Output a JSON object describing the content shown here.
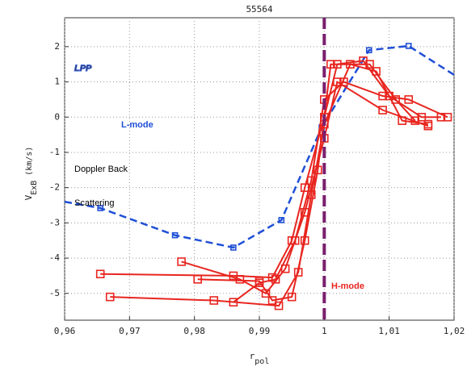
{
  "chart_data": {
    "type": "line",
    "title": "55564",
    "xlabel": "r",
    "xlabel_sub": "pol",
    "ylabel": "V",
    "ylabel_sub": "ExB",
    "ylabel_unit": "(km/s)",
    "annotations": [
      "LPP",
      "L-mode",
      "Doppler Back",
      "Scattering",
      "H-mode"
    ],
    "xlim": [
      0.96,
      1.02
    ],
    "xticks": [
      {
        "value": 0.96,
        "label": "0,96"
      },
      {
        "value": 0.97,
        "label": "0,97"
      },
      {
        "value": 0.98,
        "label": "0,98"
      },
      {
        "value": 0.99,
        "label": "0,99"
      },
      1,
      {
        "value": 1.01,
        "label": "1,01"
      },
      {
        "value": 1.02,
        "label": "1,02"
      }
    ],
    "ylim": [
      -5.76,
      2.82
    ],
    "yticks": [
      -5,
      -4,
      -3,
      -2,
      -1,
      0,
      1,
      2
    ],
    "grid": true,
    "vline": 1,
    "vline_color": "#7a1f6e",
    "series": [
      {
        "color": "#1f4fd6",
        "linestyle": "dashed",
        "x": [
          0.96,
          0.9655,
          0.977,
          0.986,
          0.9934,
          0.9996,
          1.0069,
          1.013,
          1.02
        ],
        "values": [
          -2.4,
          -2.58,
          -3.35,
          -3.7,
          -2.92,
          -0.29,
          1.9,
          2.02,
          1.2
        ],
        "markers": [
          false,
          true,
          true,
          true,
          true,
          true,
          true,
          true,
          false
        ]
      },
      {
        "color": "#e8251f",
        "linestyle": "solid",
        "x": [
          0.9655,
          0.986,
          0.992,
          0.995,
          0.997,
          1.0,
          1.002,
          1.006,
          1.01,
          1.015,
          1.018
        ],
        "values": [
          -4.45,
          -4.5,
          -4.55,
          -3.5,
          -2.0,
          0,
          1.5,
          1.6,
          0.6,
          0,
          0
        ]
      },
      {
        "color": "#e8251f",
        "linestyle": "solid",
        "x": [
          0.967,
          0.983,
          0.993,
          0.996,
          0.998,
          1.0,
          1.004,
          1.008,
          1.012,
          1.016
        ],
        "values": [
          -5.1,
          -5.2,
          -5.35,
          -4.4,
          -2.2,
          -0.2,
          1.5,
          1.3,
          -0.1,
          -0.2
        ]
      },
      {
        "color": "#e8251f",
        "linestyle": "solid",
        "x": [
          0.978,
          0.987,
          0.991,
          0.994,
          0.997,
          1.0,
          1.002,
          1.009,
          1.016
        ],
        "values": [
          -4.1,
          -4.6,
          -5.0,
          -4.3,
          -2.7,
          -0.6,
          1.0,
          0.2,
          -0.25
        ]
      },
      {
        "color": "#e8251f",
        "linestyle": "solid",
        "x": [
          0.9805,
          0.99,
          0.992,
          0.995,
          0.997,
          0.999,
          1.001,
          1.007,
          1.011,
          1.014
        ],
        "values": [
          -4.6,
          -4.65,
          -5.2,
          -5.1,
          -3.5,
          -1.5,
          1.5,
          1.5,
          0.5,
          -0.1
        ]
      },
      {
        "color": "#e8251f",
        "linestyle": "solid",
        "x": [
          0.986,
          0.99,
          0.9925,
          0.9955,
          0.998,
          1.0,
          1.003,
          1.009,
          1.013,
          1.019
        ],
        "values": [
          -5.25,
          -4.7,
          -4.6,
          -3.5,
          -1.8,
          0.5,
          1.0,
          0.6,
          0.5,
          0
        ]
      }
    ]
  }
}
